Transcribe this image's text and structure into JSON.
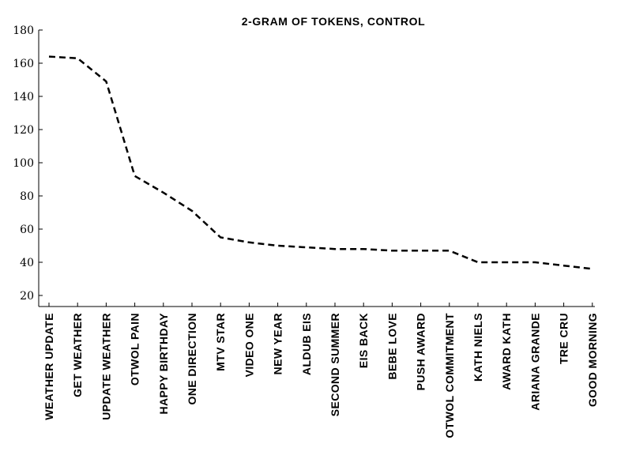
{
  "chart_data": {
    "type": "line",
    "title": "2-GRAM OF TOKENS, CONTROL",
    "xlabel": "",
    "ylabel": "",
    "categories": [
      "WEATHER UPDATE",
      "GET WEATHER",
      "UPDATE WEATHER",
      "OTWOL PAIN",
      "HAPPY BIRTHDAY",
      "ONE DIRECTION",
      "MTV STAR",
      "VIDEO ONE",
      "NEW YEAR",
      "ALDUB EIS",
      "SECOND SUMMER",
      "EIS BACK",
      "BEBE LOVE",
      "PUSH AWARD",
      "OTWOL COMMITMENT",
      "KATH NIELS",
      "AWARD KATH",
      "ARIANA GRANDE",
      "TRE CRU",
      "GOOD MORNING"
    ],
    "series": [
      {
        "values": [
          164,
          163,
          149,
          92,
          82,
          71,
          55,
          52,
          50,
          49,
          48,
          48,
          47,
          47,
          47,
          40,
          40,
          40,
          38,
          36
        ]
      }
    ],
    "ylim": [
      20,
      180
    ],
    "yticks": [
      "20",
      "40",
      "60",
      "80",
      "100",
      "120",
      "140",
      "160",
      "180"
    ],
    "line_style": "dashed",
    "line_color": "#000000",
    "grid": false,
    "legend": "none"
  }
}
